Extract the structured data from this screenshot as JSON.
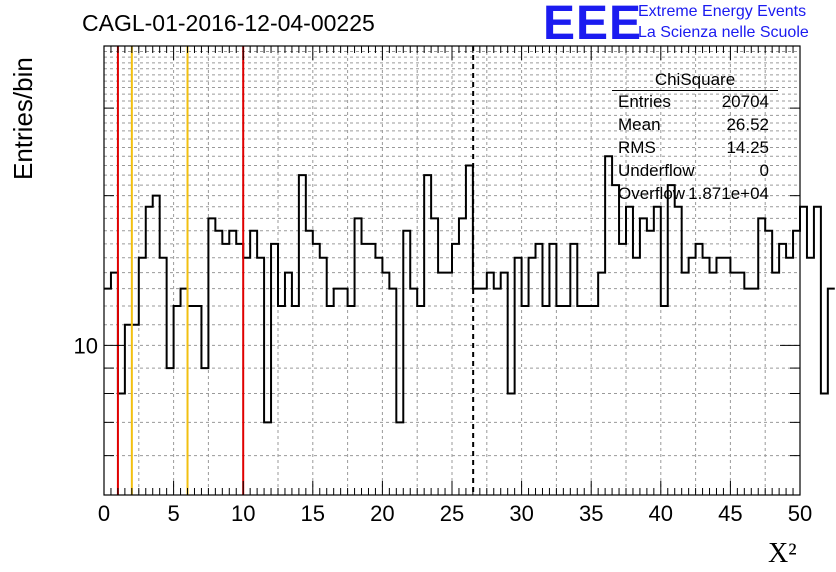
{
  "title": "CAGL-01-2016-12-04-00225",
  "logo": {
    "mark": "EEE",
    "line1": "Extreme Energy Events",
    "line2": "La Scienza nelle Scuole"
  },
  "stats": {
    "name": "ChiSquare",
    "rows": [
      {
        "label": "Entries",
        "value": "20704"
      },
      {
        "label": "Mean",
        "value": "26.52"
      },
      {
        "label": "RMS",
        "value": "14.25"
      },
      {
        "label": "Underflow",
        "value": "0"
      },
      {
        "label": "Overflow",
        "value": "1.871e+04"
      }
    ]
  },
  "chart_data": {
    "type": "histogram",
    "title": "CAGL-01-2016-12-04-00225",
    "xlabel": "X²",
    "ylabel": "Entries/bin",
    "xlim": [
      0,
      50
    ],
    "ylim": [
      5,
      40
    ],
    "yscale": "log",
    "grid": true,
    "bin_width": 0.5,
    "x_ticks": [
      "0",
      "5",
      "10",
      "15",
      "20",
      "25",
      "30",
      "35",
      "40",
      "45",
      "50"
    ],
    "y_tick_labels": [
      {
        "value": 10,
        "label": "10"
      }
    ],
    "counts": [
      13,
      14,
      8,
      11,
      11,
      15,
      19,
      20,
      15,
      9,
      12,
      13,
      12,
      12,
      9,
      18,
      17,
      16,
      17,
      16,
      15,
      17,
      15,
      7,
      16,
      12,
      14,
      12,
      22,
      17,
      16,
      15,
      12,
      13,
      13,
      12,
      18,
      16,
      16,
      15,
      14,
      13,
      7,
      17,
      13,
      12,
      22,
      18,
      14,
      14,
      16,
      18,
      23,
      13,
      13,
      14,
      13,
      14,
      8,
      15,
      12,
      15,
      16,
      12,
      16,
      12,
      12,
      16,
      12,
      12,
      12,
      14,
      24,
      21,
      16,
      19,
      15,
      18,
      17,
      19,
      12,
      21,
      19,
      14,
      15,
      16,
      15,
      14,
      15,
      15,
      14,
      14,
      13,
      13,
      18,
      17,
      14,
      16,
      15,
      17,
      19,
      15,
      19,
      8,
      13
    ],
    "vertical_lines": [
      {
        "x": 1,
        "color": "#e00000",
        "style": "solid"
      },
      {
        "x": 2,
        "color": "#f2c010",
        "style": "solid"
      },
      {
        "x": 6,
        "color": "#f2c010",
        "style": "solid"
      },
      {
        "x": 10,
        "color": "#e00000",
        "style": "solid"
      },
      {
        "x": 26.52,
        "color": "#000000",
        "style": "dashed"
      }
    ]
  }
}
